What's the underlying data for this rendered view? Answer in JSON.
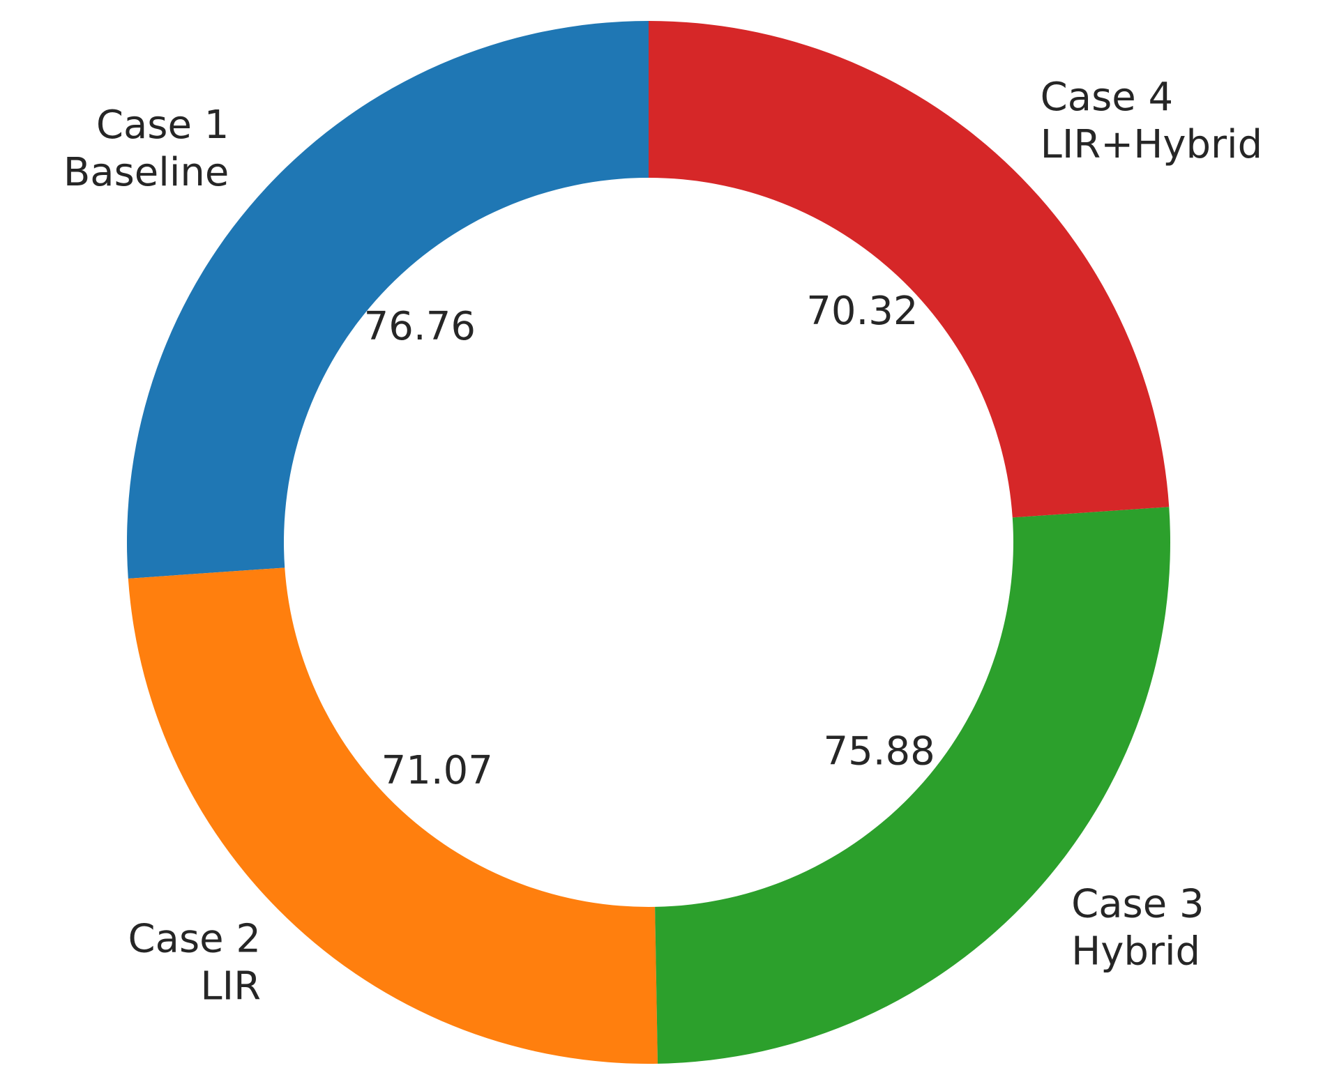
{
  "chart_data": {
    "type": "donut",
    "categories": [
      [
        "Case 1",
        "Baseline"
      ],
      [
        "Case 2",
        "LIR"
      ],
      [
        "Case 3",
        "Hybrid"
      ],
      [
        "Case 4",
        "LIR+Hybrid"
      ]
    ],
    "values": [
      76.76,
      71.07,
      75.88,
      70.32
    ],
    "colors": [
      "#1f77b4",
      "#ff7f0e",
      "#2ca02c",
      "#d62728"
    ]
  }
}
